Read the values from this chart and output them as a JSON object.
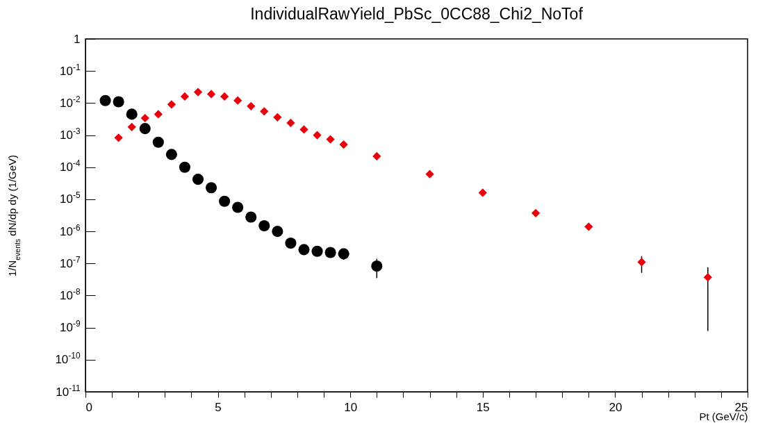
{
  "chart_data": {
    "type": "scatter",
    "title": "IndividualRawYield_PbSc_0CC88_Chi2_NoTof",
    "xlabel": "Pt (GeV/c)",
    "ylabel": "1/N$_{events}$ dN/dp dy (1/GeV)",
    "log": "y",
    "xlim": [
      0,
      25
    ],
    "xticks": [
      0,
      {
        "value": 1,
        "label": null
      },
      {
        "value": 2,
        "label": null
      },
      {
        "value": 3,
        "label": null
      },
      {
        "value": 4,
        "label": null
      },
      5,
      {
        "value": 6,
        "label": null
      },
      {
        "value": 7,
        "label": null
      },
      {
        "value": 8,
        "label": null
      },
      {
        "value": 9,
        "label": null
      },
      10,
      {
        "value": 11,
        "label": null
      },
      {
        "value": 12,
        "label": null
      },
      {
        "value": 13,
        "label": null
      },
      {
        "value": 14,
        "label": null
      },
      15,
      {
        "value": 16,
        "label": null
      },
      {
        "value": 17,
        "label": null
      },
      {
        "value": 18,
        "label": null
      },
      {
        "value": 19,
        "label": null
      },
      20,
      {
        "value": 21,
        "label": null
      },
      {
        "value": 22,
        "label": null
      },
      {
        "value": 23,
        "label": null
      },
      {
        "value": 24,
        "label": null
      },
      25
    ],
    "ylim": [
      1e-11,
      1
    ],
    "yticks": [
      {
        "value": 1e-11,
        "label": "10$^{-11}$"
      },
      {
        "value": 1e-10,
        "label": "10$^{-10}$"
      },
      {
        "value": 1e-09,
        "label": "10$^{-9}$"
      },
      {
        "value": 1e-08,
        "label": "10$^{-8}$"
      },
      {
        "value": 1e-07,
        "label": "10$^{-7}$"
      },
      {
        "value": 1e-06,
        "label": "10$^{-6}$"
      },
      {
        "value": 1e-05,
        "label": "10$^{-5}$"
      },
      {
        "value": 0.0001,
        "label": "10$^{-4}$"
      },
      {
        "value": 0.001,
        "label": "10$^{-3}$"
      },
      {
        "value": 0.01,
        "label": "10$^{-2}$"
      },
      {
        "value": 0.1,
        "label": "10$^{-1}$"
      },
      1
    ],
    "grid": false,
    "series": [
      {
        "color": "#000000",
        "marker": "circle",
        "x": [
          0.75,
          1.25,
          1.75,
          2.25,
          2.75,
          3.25,
          3.75,
          4.25,
          4.75,
          5.25,
          5.75,
          6.25,
          6.75,
          7.25,
          7.75,
          8.25,
          8.75,
          9.25,
          9.75,
          11
        ],
        "values": [
          0.012,
          0.011,
          0.0045,
          0.0016,
          0.0006,
          0.00025,
          0.0001,
          4.2e-05,
          2.3e-05,
          8.7e-06,
          5.6e-06,
          2.8e-06,
          1.5e-06,
          1e-06,
          4.3e-07,
          2.7e-07,
          2.4e-07,
          2.2e-07,
          2e-07,
          8.3e-08
        ],
        "errors": [
          null,
          null,
          null,
          null,
          null,
          null,
          null,
          null,
          null,
          null,
          null,
          null,
          null,
          null,
          null,
          null,
          null,
          null,
          [
            1.3e-07,
            2.7e-07
          ],
          [
            3.5e-08,
            1.4e-07
          ]
        ]
      },
      {
        "color": "#e8000b",
        "marker": "diamond",
        "x": [
          1.25,
          1.75,
          2.25,
          2.75,
          3.25,
          3.75,
          4.25,
          4.75,
          5.25,
          5.75,
          6.25,
          6.75,
          7.25,
          7.75,
          8.25,
          8.75,
          9.25,
          9.75,
          11,
          13,
          15,
          17,
          19,
          21,
          23.5
        ],
        "values": [
          0.00083,
          0.0018,
          0.0034,
          0.0045,
          0.0091,
          0.016,
          0.022,
          0.019,
          0.016,
          0.012,
          0.008,
          0.0055,
          0.0036,
          0.0024,
          0.0015,
          0.001,
          0.00074,
          0.00051,
          0.00022,
          6.1e-05,
          1.6e-05,
          3.7e-06,
          1.4e-06,
          1.1e-07,
          3.7e-08
        ],
        "errors": [
          null,
          null,
          null,
          null,
          null,
          null,
          null,
          null,
          null,
          null,
          null,
          null,
          null,
          null,
          null,
          null,
          null,
          null,
          null,
          null,
          null,
          null,
          null,
          [
            5.1e-08,
            1.7e-07
          ],
          [
            7.8e-10,
            7.6e-08
          ]
        ]
      }
    ]
  }
}
